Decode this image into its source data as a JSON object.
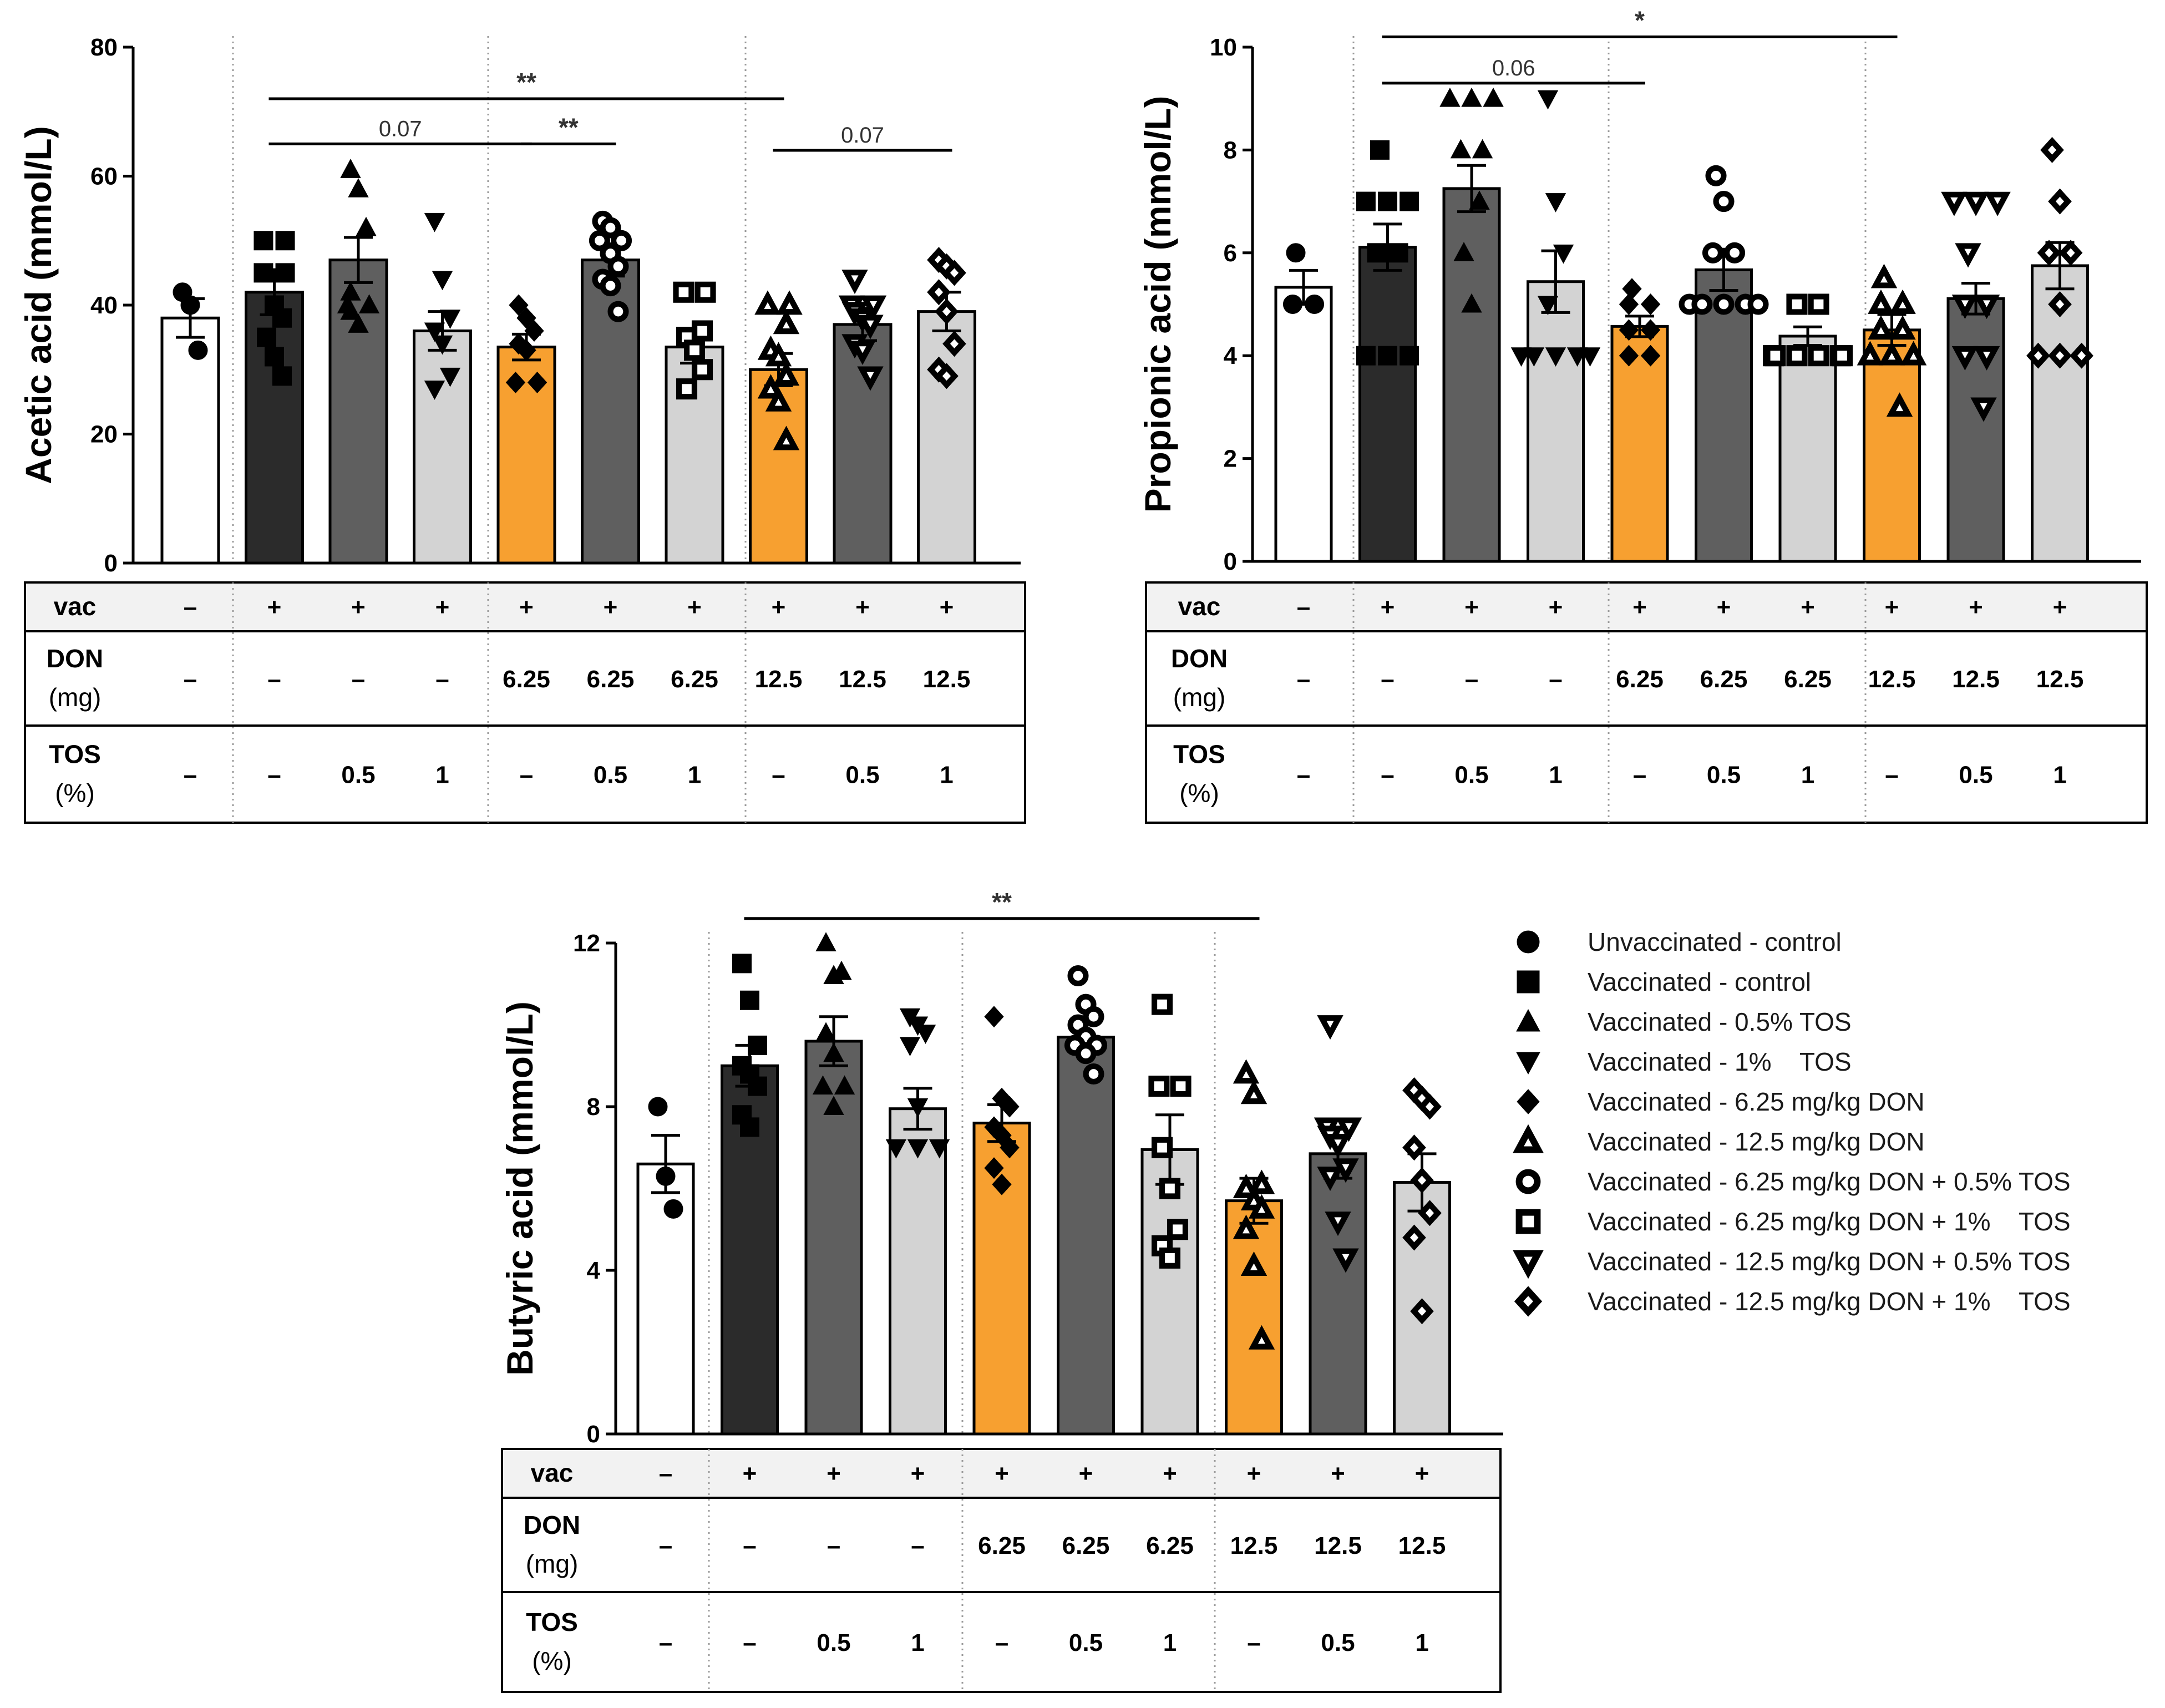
{
  "groups": [
    {
      "vac": "–",
      "don": "–",
      "tos": "–",
      "color": "#ffffff",
      "marker": "circle"
    },
    {
      "vac": "+",
      "don": "–",
      "tos": "–",
      "color": "#2b2b2b",
      "marker": "square"
    },
    {
      "vac": "+",
      "don": "–",
      "tos": "0.5",
      "color": "#5f5f5f",
      "marker": "triangle"
    },
    {
      "vac": "+",
      "don": "–",
      "tos": "1",
      "color": "#d3d3d3",
      "marker": "triangle-down"
    },
    {
      "vac": "+",
      "don": "6.25",
      "tos": "–",
      "color": "#f7a030",
      "marker": "diamond"
    },
    {
      "vac": "+",
      "don": "6.25",
      "tos": "0.5",
      "color": "#5f5f5f",
      "marker": "circle-open"
    },
    {
      "vac": "+",
      "don": "6.25",
      "tos": "1",
      "color": "#d3d3d3",
      "marker": "square-open"
    },
    {
      "vac": "+",
      "don": "12.5",
      "tos": "–",
      "color": "#f7a030",
      "marker": "triangle-open"
    },
    {
      "vac": "+",
      "don": "12.5",
      "tos": "0.5",
      "color": "#5f5f5f",
      "marker": "triangle-down-open"
    },
    {
      "vac": "+",
      "don": "12.5",
      "tos": "1",
      "color": "#d3d3d3",
      "marker": "diamond-open"
    }
  ],
  "table_labels": {
    "vac": "vac",
    "don": "DON",
    "don_unit": "(mg)",
    "tos": "TOS",
    "tos_unit": "(%)"
  },
  "chart_data": [
    {
      "type": "bar",
      "id": "acetic",
      "ylabel": "Acetic acid (mmol/L)",
      "ylim": [
        0,
        80
      ],
      "yticks": [
        0,
        20,
        40,
        60,
        80
      ],
      "means": [
        38,
        42,
        47,
        36,
        33.5,
        47,
        33.5,
        30,
        37,
        39
      ],
      "sem": [
        3,
        3.5,
        3.5,
        3,
        2,
        2.5,
        2.5,
        2.5,
        2.5,
        3
      ],
      "points": [
        [
          42,
          40,
          33
        ],
        [
          50,
          50,
          45,
          45,
          40,
          38,
          35,
          32,
          29
        ],
        [
          61,
          58,
          52,
          42,
          40,
          40,
          39,
          37
        ],
        [
          53,
          44,
          38,
          36,
          34,
          29,
          27
        ],
        [
          40,
          38,
          36,
          34,
          33,
          28,
          28
        ],
        [
          53,
          52,
          50,
          50,
          48,
          46,
          44,
          43,
          39
        ],
        [
          42,
          42,
          36,
          35,
          33,
          30,
          27
        ],
        [
          40,
          40,
          37,
          33,
          32,
          29,
          27,
          25,
          19
        ],
        [
          44,
          40,
          40,
          39,
          38,
          37,
          34,
          33,
          29
        ],
        [
          47,
          46,
          45,
          42,
          39,
          34,
          30,
          29
        ]
      ],
      "annotations": [
        {
          "from": 1,
          "to": 7,
          "label": "**",
          "y": 72
        },
        {
          "from": 1,
          "to": 4,
          "label": "0.07",
          "y": 65
        },
        {
          "from": 4,
          "to": 5,
          "label": "**",
          "y": 65
        },
        {
          "from": 7,
          "to": 9,
          "label": "0.07",
          "y": 64
        }
      ]
    },
    {
      "type": "bar",
      "id": "propionic",
      "ylabel": "Propionic acid (mmol/L)",
      "ylim": [
        0,
        10
      ],
      "yticks": [
        0,
        2,
        4,
        6,
        8,
        10
      ],
      "means": [
        5.33,
        6.11,
        7.25,
        5.44,
        4.57,
        5.67,
        4.38,
        4.5,
        5.11,
        5.75
      ],
      "sem": [
        0.33,
        0.45,
        0.45,
        0.6,
        0.2,
        0.4,
        0.18,
        0.3,
        0.3,
        0.45
      ],
      "points": [
        [
          6,
          5,
          5
        ],
        [
          8,
          7,
          7,
          7,
          6,
          6,
          4,
          4,
          4
        ],
        [
          9,
          9,
          9,
          8,
          8,
          7,
          6,
          5
        ],
        [
          9,
          7,
          6,
          5,
          4,
          4,
          4,
          4,
          4
        ],
        [
          5.3,
          5,
          5,
          4.5,
          4.5,
          4,
          4
        ],
        [
          7.5,
          7,
          6,
          6,
          5,
          5,
          5,
          5,
          5
        ],
        [
          5,
          5,
          4,
          4,
          4,
          4,
          4,
          4
        ],
        [
          5.5,
          5,
          5,
          4.5,
          4.5,
          4,
          4,
          4,
          3
        ],
        [
          7,
          7,
          7,
          6,
          5,
          5,
          4,
          4,
          3
        ],
        [
          8,
          7,
          6,
          6,
          5,
          4,
          4,
          4
        ]
      ],
      "annotations": [
        {
          "from": 1,
          "to": 7,
          "label": "*",
          "y": 10.2
        },
        {
          "from": 1,
          "to": 4,
          "label": "0.06",
          "y": 9.3
        }
      ]
    },
    {
      "type": "bar",
      "id": "butyric",
      "ylabel": "Butyric acid (mmol/L)",
      "ylim": [
        0,
        12
      ],
      "yticks": [
        0,
        4,
        8,
        12
      ],
      "means": [
        6.6,
        9.0,
        9.6,
        7.95,
        7.6,
        9.7,
        6.95,
        5.7,
        6.85,
        6.15
      ],
      "sem": [
        0.7,
        0.5,
        0.6,
        0.5,
        0.45,
        0.35,
        0.85,
        0.55,
        0.6,
        0.7
      ],
      "points": [
        [
          8,
          6.3,
          5.5
        ],
        [
          11.5,
          10.6,
          9.5,
          9,
          8.8,
          8.5,
          7.8,
          7.5
        ],
        [
          12,
          11.2,
          11.3,
          9.8,
          9.3,
          8.5,
          8.5,
          8
        ],
        [
          10.2,
          10,
          9.8,
          9.5,
          8,
          7,
          7,
          7
        ],
        [
          10.2,
          8.2,
          8,
          7.5,
          7.3,
          7,
          6.5,
          6.1
        ],
        [
          11.2,
          10.5,
          10.2,
          10,
          9.7,
          9.5,
          9.5,
          9.3,
          8.8
        ],
        [
          10.5,
          8.5,
          8.5,
          7,
          6,
          5,
          4.6,
          4.3
        ],
        [
          8.8,
          8.3,
          6.1,
          6,
          5.7,
          5.5,
          5,
          4.1,
          2.3
        ],
        [
          10,
          7.5,
          7.5,
          7.3,
          7.1,
          6.5,
          6.3,
          5.2,
          4.3
        ],
        [
          8.4,
          8.2,
          8,
          7,
          6.2,
          5.4,
          4.8,
          3
        ]
      ],
      "annotations": [
        {
          "from": 1,
          "to": 7,
          "label": "**",
          "y": 12.6
        }
      ]
    }
  ],
  "legend": [
    {
      "marker": "circle",
      "label": "Unvaccinated - control"
    },
    {
      "marker": "square",
      "label": "Vaccinated - control"
    },
    {
      "marker": "triangle",
      "label": "Vaccinated - 0.5% TOS"
    },
    {
      "marker": "triangle-down",
      "label": "Vaccinated - 1%    TOS"
    },
    {
      "marker": "diamond",
      "label": "Vaccinated - 6.25 mg/kg DON"
    },
    {
      "marker": "triangle-open",
      "label": "Vaccinated - 12.5 mg/kg DON"
    },
    {
      "marker": "circle-open",
      "label": "Vaccinated - 6.25 mg/kg DON + 0.5% TOS"
    },
    {
      "marker": "square-open",
      "label": "Vaccinated - 6.25 mg/kg DON + 1%    TOS"
    },
    {
      "marker": "triangle-down-open",
      "label": "Vaccinated - 12.5 mg/kg DON + 0.5% TOS"
    },
    {
      "marker": "diamond-open",
      "label": "Vaccinated - 12.5 mg/kg DON + 1%    TOS"
    }
  ]
}
